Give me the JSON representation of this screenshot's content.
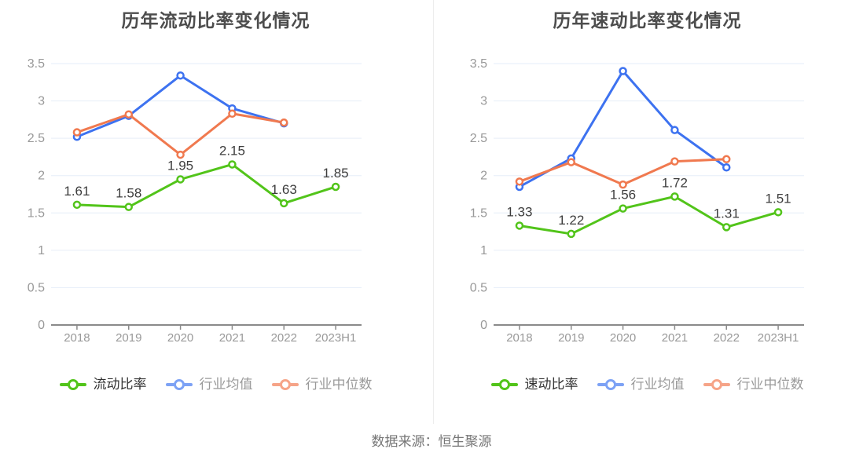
{
  "source_note": "数据来源：恒生聚源",
  "colors": {
    "green": "#52c41a",
    "blue": "#3d72f0",
    "orange": "#f0794f",
    "legend_green": "#52c41a",
    "legend_blue": "#7da2f5",
    "legend_orange": "#f6a488",
    "grid": "#e6edf8",
    "axis_line": "#8a8a8a",
    "tick_text": "#999999",
    "title_text": "#4d4d4d",
    "value_label": "#3d3d3d",
    "legend_text_active": "#333333",
    "legend_text_muted": "#9a9a9a",
    "divider": "#ededed",
    "background": "#ffffff"
  },
  "chart_data": [
    {
      "type": "line",
      "title": "历年流动比率变化情况",
      "categories": [
        "2018",
        "2019",
        "2020",
        "2021",
        "2022",
        "2023H1"
      ],
      "xlabel": "",
      "ylabel": "",
      "ylim": [
        0,
        3.5
      ],
      "ytick_step": 0.5,
      "grid": true,
      "legend_position": "bottom",
      "series": [
        {
          "name": "流动比率",
          "color": "#52c41a",
          "legend_color": "#52c41a",
          "label_color": "#333333",
          "show_labels": true,
          "values": [
            1.61,
            1.58,
            1.95,
            2.15,
            1.63,
            1.85
          ]
        },
        {
          "name": "行业均值",
          "color": "#3d72f0",
          "legend_color": "#7da2f5",
          "label_color": "#9a9a9a",
          "show_labels": false,
          "values": [
            2.52,
            2.8,
            3.34,
            2.9,
            2.7,
            null
          ]
        },
        {
          "name": "行业中位数",
          "color": "#f0794f",
          "legend_color": "#f6a488",
          "label_color": "#9a9a9a",
          "show_labels": false,
          "values": [
            2.58,
            2.82,
            2.28,
            2.83,
            2.71,
            null
          ]
        }
      ]
    },
    {
      "type": "line",
      "title": "历年速动比率变化情况",
      "categories": [
        "2018",
        "2019",
        "2020",
        "2021",
        "2022",
        "2023H1"
      ],
      "xlabel": "",
      "ylabel": "",
      "ylim": [
        0,
        3.5
      ],
      "ytick_step": 0.5,
      "grid": true,
      "legend_position": "bottom",
      "series": [
        {
          "name": "速动比率",
          "color": "#52c41a",
          "legend_color": "#52c41a",
          "label_color": "#333333",
          "show_labels": true,
          "values": [
            1.33,
            1.22,
            1.56,
            1.72,
            1.31,
            1.51
          ]
        },
        {
          "name": "行业均值",
          "color": "#3d72f0",
          "legend_color": "#7da2f5",
          "label_color": "#9a9a9a",
          "show_labels": false,
          "values": [
            1.85,
            2.23,
            3.4,
            2.61,
            2.11,
            null
          ]
        },
        {
          "name": "行业中位数",
          "color": "#f0794f",
          "legend_color": "#f6a488",
          "label_color": "#9a9a9a",
          "show_labels": false,
          "values": [
            1.92,
            2.18,
            1.88,
            2.19,
            2.22,
            null
          ]
        }
      ]
    }
  ]
}
